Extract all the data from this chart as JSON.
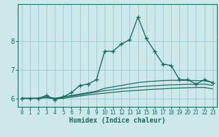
{
  "xlabel": "Humidex (Indice chaleur)",
  "x": [
    0,
    1,
    2,
    3,
    4,
    5,
    6,
    7,
    8,
    9,
    10,
    11,
    12,
    13,
    14,
    15,
    16,
    17,
    18,
    19,
    20,
    21,
    22,
    23
  ],
  "line1": [
    6.0,
    6.0,
    6.0,
    6.1,
    5.95,
    6.05,
    6.2,
    6.45,
    6.5,
    6.65,
    7.65,
    7.65,
    7.9,
    8.05,
    8.85,
    8.1,
    7.65,
    7.2,
    7.15,
    6.65,
    6.65,
    6.5,
    6.65,
    6.55
  ],
  "line2": [
    6.0,
    6.0,
    6.0,
    6.05,
    6.0,
    6.05,
    6.1,
    6.15,
    6.2,
    6.25,
    6.35,
    6.4,
    6.45,
    6.5,
    6.55,
    6.58,
    6.6,
    6.62,
    6.63,
    6.63,
    6.63,
    6.62,
    6.62,
    6.55
  ],
  "line3": [
    6.0,
    6.0,
    6.0,
    6.04,
    6.0,
    6.04,
    6.08,
    6.12,
    6.17,
    6.22,
    6.27,
    6.3,
    6.34,
    6.37,
    6.4,
    6.42,
    6.44,
    6.46,
    6.47,
    6.48,
    6.49,
    6.49,
    6.5,
    6.45
  ],
  "line4": [
    6.0,
    6.0,
    6.0,
    6.02,
    5.98,
    6.0,
    6.04,
    6.08,
    6.12,
    6.15,
    6.18,
    6.21,
    6.24,
    6.26,
    6.28,
    6.3,
    6.32,
    6.33,
    6.35,
    6.36,
    6.37,
    6.38,
    6.38,
    6.33
  ],
  "line_color": "#1a6b5e",
  "bg_color": "#cce8eb",
  "grid_color": "#a0cdd1",
  "axis_color": "#1a6b5e",
  "ylim": [
    5.7,
    9.3
  ],
  "xlim": [
    -0.5,
    23.5
  ],
  "yticks": [
    6,
    7,
    8
  ],
  "xticks": [
    0,
    1,
    2,
    3,
    4,
    5,
    6,
    7,
    8,
    9,
    10,
    11,
    12,
    13,
    14,
    15,
    16,
    17,
    18,
    19,
    20,
    21,
    22,
    23
  ]
}
